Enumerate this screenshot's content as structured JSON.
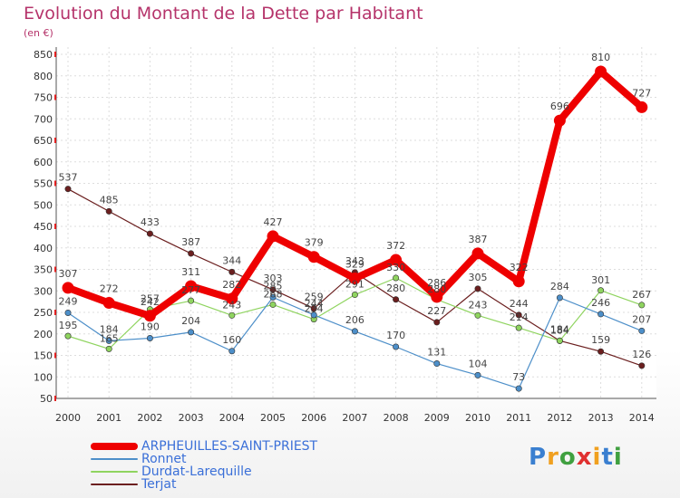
{
  "chart_data": {
    "type": "line",
    "title": "Evolution du Montant de la Dette par Habitant",
    "subtitle": "(en €)",
    "x": [
      "2000",
      "2001",
      "2002",
      "2003",
      "2004",
      "2005",
      "2006",
      "2007",
      "2008",
      "2009",
      "2010",
      "2011",
      "2012",
      "2013",
      "2014"
    ],
    "ylim": [
      50,
      850
    ],
    "yticks": [
      50,
      100,
      150,
      200,
      250,
      300,
      350,
      400,
      450,
      500,
      550,
      600,
      650,
      700,
      750,
      800,
      850
    ],
    "grid": true,
    "legend_position": "bottom-left",
    "series": [
      {
        "name": "Terjat",
        "color": "#6b1f1f",
        "values": [
          537,
          485,
          433,
          387,
          344,
          303,
          259,
          343,
          280,
          227,
          305,
          244,
          184,
          159,
          126
        ]
      },
      {
        "name": "Durdat-Larequille",
        "color": "#8fd45f",
        "values": [
          195,
          165,
          257,
          277,
          243,
          268,
          234,
          291,
          330,
          280,
          243,
          214,
          184,
          301,
          267
        ]
      },
      {
        "name": "Ronnet",
        "color": "#4d8fc9",
        "values": [
          249,
          184,
          190,
          204,
          160,
          285,
          244,
          206,
          170,
          131,
          104,
          73,
          284,
          246,
          207
        ]
      },
      {
        "name": "ARPHEUILLES-SAINT-PRIEST",
        "color": "#ee0000",
        "values": [
          307,
          272,
          242,
          311,
          282,
          427,
          379,
          329,
          372,
          286,
          387,
          322,
          696,
          810,
          727
        ]
      }
    ],
    "legend_order": [
      "ARPHEUILLES-SAINT-PRIEST",
      "Ronnet",
      "Durdat-Larequille",
      "Terjat"
    ]
  },
  "logo": {
    "letters": [
      "P",
      "r",
      "o",
      "x",
      "i",
      "t",
      "i"
    ],
    "colors": [
      "#3a7fd0",
      "#f0a020",
      "#40a040",
      "#e03030",
      "#f0a020",
      "#3a7fd0",
      "#40a040"
    ]
  }
}
